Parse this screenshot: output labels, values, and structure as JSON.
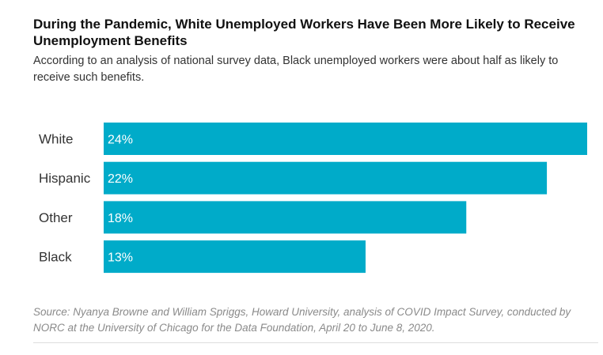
{
  "chart_data": {
    "type": "bar",
    "orientation": "horizontal",
    "title": "During the Pandemic, White Unemployed Workers Have Been More Likely to Receive Unemployment Benefits",
    "subtitle": "According to an analysis of national survey data, Black unemployed workers were about half as likely to receive such benefits.",
    "categories": [
      "White",
      "Hispanic",
      "Other",
      "Black"
    ],
    "values": [
      24,
      22,
      18,
      13
    ],
    "data_labels": [
      "24%",
      "22%",
      "18%",
      "13%"
    ],
    "xlim": [
      0,
      24
    ],
    "unit": "%",
    "grid": false,
    "bar_color": "#00abc9",
    "source": "Source: Nyanya Browne and William Spriggs, Howard University, analysis of COVID Impact Survey, conducted by NORC at the University of Chicago for the Data Foundation, April 20 to June 8, 2020."
  }
}
